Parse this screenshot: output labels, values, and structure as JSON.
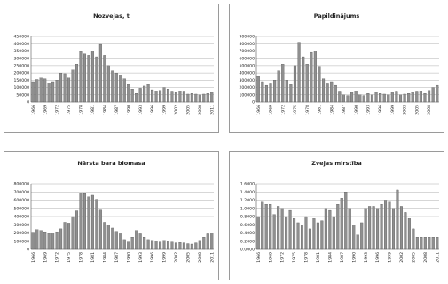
{
  "colors": {
    "bar": "#8f8f8f",
    "bar_edge": "#333333",
    "grid": "#9a9a9a",
    "axis": "#555555",
    "text": "#222222"
  },
  "chart_data": [
    {
      "type": "bar",
      "title": "Nozvejas, t",
      "ylim": [
        0,
        450000
      ],
      "yticks": [
        0,
        50000,
        100000,
        150000,
        200000,
        250000,
        300000,
        350000,
        400000,
        450000
      ],
      "ytick_labels": [
        "0",
        "50000",
        "100000",
        "150000",
        "200000",
        "250000",
        "300000",
        "350000",
        "400000",
        "450000"
      ],
      "xtick_labels": [
        "1966",
        "1969",
        "1972",
        "1975",
        "1978",
        "1981",
        "1984",
        "1987",
        "1990",
        "1993",
        "1996",
        "1999",
        "2002",
        "2005",
        "2008",
        "2011"
      ],
      "grid": true,
      "categories": [
        "1966",
        "1967",
        "1968",
        "1969",
        "1970",
        "1971",
        "1972",
        "1973",
        "1974",
        "1975",
        "1976",
        "1977",
        "1978",
        "1979",
        "1980",
        "1981",
        "1982",
        "1983",
        "1984",
        "1985",
        "1986",
        "1987",
        "1988",
        "1989",
        "1990",
        "1991",
        "1992",
        "1993",
        "1994",
        "1995",
        "1996",
        "1997",
        "1998",
        "1999",
        "2000",
        "2001",
        "2002",
        "2003",
        "2004",
        "2005",
        "2006",
        "2007",
        "2008",
        "2009",
        "2010",
        "2011"
      ],
      "values": [
        140000,
        155000,
        165000,
        160000,
        130000,
        140000,
        150000,
        200000,
        195000,
        165000,
        220000,
        260000,
        345000,
        330000,
        320000,
        350000,
        310000,
        395000,
        320000,
        250000,
        215000,
        200000,
        185000,
        160000,
        120000,
        90000,
        60000,
        95000,
        110000,
        120000,
        85000,
        75000,
        80000,
        100000,
        90000,
        70000,
        65000,
        75000,
        70000,
        55000,
        60000,
        55000,
        50000,
        55000,
        60000,
        65000
      ]
    },
    {
      "type": "bar",
      "title": "Papildinājums",
      "ylim": [
        0,
        900000
      ],
      "yticks": [
        0,
        100000,
        200000,
        300000,
        400000,
        500000,
        600000,
        700000,
        800000,
        900000
      ],
      "ytick_labels": [
        "0",
        "100000",
        "200000",
        "300000",
        "400000",
        "500000",
        "600000",
        "700000",
        "800000",
        "900000"
      ],
      "xtick_labels": [
        "1966",
        "1969",
        "1972",
        "1975",
        "1978",
        "1981",
        "1984",
        "1987",
        "1990",
        "1993",
        "1996",
        "1999",
        "2002",
        "2005",
        "2008"
      ],
      "grid": true,
      "categories": [
        "1966",
        "1967",
        "1968",
        "1969",
        "1970",
        "1971",
        "1972",
        "1973",
        "1974",
        "1975",
        "1976",
        "1977",
        "1978",
        "1979",
        "1980",
        "1981",
        "1982",
        "1983",
        "1984",
        "1985",
        "1986",
        "1987",
        "1988",
        "1989",
        "1990",
        "1991",
        "1992",
        "1993",
        "1994",
        "1995",
        "1996",
        "1997",
        "1998",
        "1999",
        "2000",
        "2001",
        "2002",
        "2003",
        "2004",
        "2005",
        "2006",
        "2007",
        "2008",
        "2009",
        "2010"
      ],
      "values": [
        350000,
        280000,
        230000,
        250000,
        300000,
        430000,
        520000,
        300000,
        240000,
        500000,
        820000,
        620000,
        520000,
        680000,
        700000,
        490000,
        320000,
        250000,
        280000,
        230000,
        140000,
        100000,
        90000,
        130000,
        150000,
        100000,
        90000,
        120000,
        100000,
        130000,
        120000,
        110000,
        100000,
        130000,
        140000,
        100000,
        110000,
        120000,
        130000,
        140000,
        150000,
        120000,
        160000,
        200000,
        230000
      ]
    },
    {
      "type": "bar",
      "title": "Nārsta bara biomasa",
      "ylim": [
        0,
        800000
      ],
      "yticks": [
        0,
        100000,
        200000,
        300000,
        400000,
        500000,
        600000,
        700000,
        800000
      ],
      "ytick_labels": [
        "0",
        "100000",
        "200000",
        "300000",
        "400000",
        "500000",
        "600000",
        "700000",
        "800000"
      ],
      "xtick_labels": [
        "1966",
        "1969",
        "1972",
        "1975",
        "1978",
        "1981",
        "1984",
        "1987",
        "1990",
        "1993",
        "1996",
        "1999",
        "2002",
        "2005",
        "2008",
        "2011"
      ],
      "grid": true,
      "categories": [
        "1966",
        "1967",
        "1968",
        "1969",
        "1970",
        "1971",
        "1972",
        "1973",
        "1974",
        "1975",
        "1976",
        "1977",
        "1978",
        "1979",
        "1980",
        "1981",
        "1982",
        "1983",
        "1984",
        "1985",
        "1986",
        "1987",
        "1988",
        "1989",
        "1990",
        "1991",
        "1992",
        "1993",
        "1994",
        "1995",
        "1996",
        "1997",
        "1998",
        "1999",
        "2000",
        "2001",
        "2002",
        "2003",
        "2004",
        "2005",
        "2006",
        "2007",
        "2008",
        "2009",
        "2010",
        "2011"
      ],
      "values": [
        210000,
        240000,
        230000,
        215000,
        195000,
        200000,
        215000,
        250000,
        330000,
        320000,
        400000,
        470000,
        690000,
        680000,
        640000,
        660000,
        610000,
        480000,
        330000,
        300000,
        260000,
        220000,
        190000,
        120000,
        90000,
        150000,
        230000,
        190000,
        150000,
        120000,
        110000,
        100000,
        90000,
        110000,
        105000,
        90000,
        80000,
        85000,
        80000,
        70000,
        65000,
        80000,
        110000,
        150000,
        190000,
        200000
      ]
    },
    {
      "type": "bar",
      "title": "Zvejas mirstība",
      "ylim": [
        0,
        1.6
      ],
      "yticks": [
        0,
        0.2,
        0.4,
        0.6,
        0.8,
        1.0,
        1.2,
        1.4,
        1.6
      ],
      "ytick_labels": [
        "0.0000",
        "0.2000",
        "0.4000",
        "0.6000",
        "0.8000",
        "1.0000",
        "1.2000",
        "1.4000",
        "1.6000"
      ],
      "xtick_labels": [
        "1966",
        "1969",
        "1972",
        "1975",
        "1978",
        "1981",
        "1984",
        "1987",
        "1990",
        "1993",
        "1996",
        "1999",
        "2002",
        "2005",
        "2008",
        "2011"
      ],
      "grid": true,
      "categories": [
        "1966",
        "1967",
        "1968",
        "1969",
        "1970",
        "1971",
        "1972",
        "1973",
        "1974",
        "1975",
        "1976",
        "1977",
        "1978",
        "1979",
        "1980",
        "1981",
        "1982",
        "1983",
        "1984",
        "1985",
        "1986",
        "1987",
        "1988",
        "1989",
        "1990",
        "1991",
        "1992",
        "1993",
        "1994",
        "1995",
        "1996",
        "1997",
        "1998",
        "1999",
        "2000",
        "2001",
        "2002",
        "2003",
        "2004",
        "2005",
        "2006",
        "2007",
        "2008",
        "2009",
        "2010",
        "2011"
      ],
      "values": [
        0.8,
        1.15,
        1.1,
        1.1,
        0.85,
        1.05,
        1.0,
        0.8,
        0.95,
        0.75,
        0.65,
        0.6,
        0.8,
        0.5,
        0.75,
        0.65,
        0.7,
        1.0,
        0.95,
        0.8,
        1.1,
        1.25,
        1.4,
        1.0,
        0.6,
        0.35,
        0.65,
        1.0,
        1.05,
        1.05,
        1.0,
        1.1,
        1.2,
        1.15,
        1.0,
        1.45,
        1.05,
        0.9,
        0.75,
        0.5,
        0.3,
        0.3,
        0.3,
        0.3,
        0.3,
        0.3
      ]
    }
  ]
}
